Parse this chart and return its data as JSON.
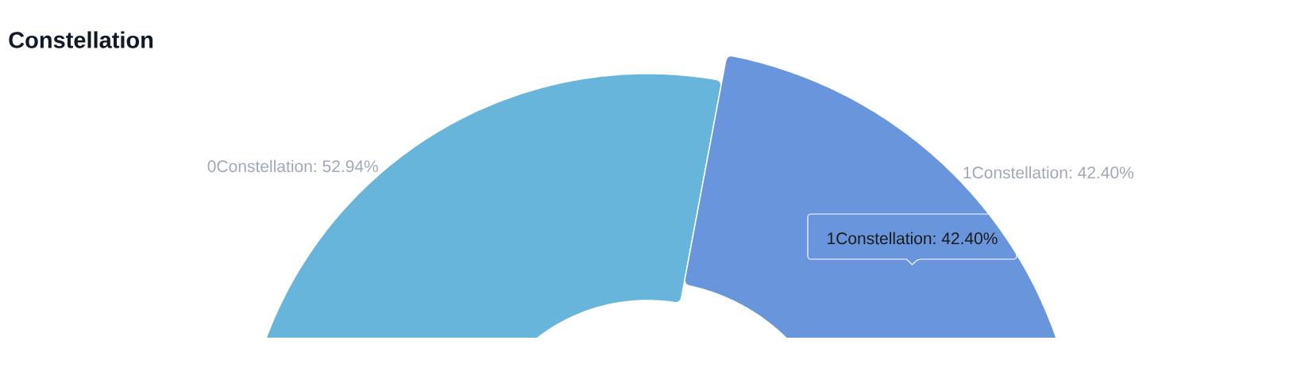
{
  "chart_data": {
    "type": "donut",
    "title": "Constellation",
    "categories": [
      "0Constellation",
      "1Constellation"
    ],
    "values": [
      52.94,
      42.4
    ],
    "colors": [
      "#67b5db",
      "#6895db"
    ],
    "value_labels": [
      ": 52.94%",
      ": 42.40%"
    ],
    "annotations": [
      {
        "text": "1Constellation: 42.40%",
        "x": "1Constellation"
      }
    ]
  }
}
